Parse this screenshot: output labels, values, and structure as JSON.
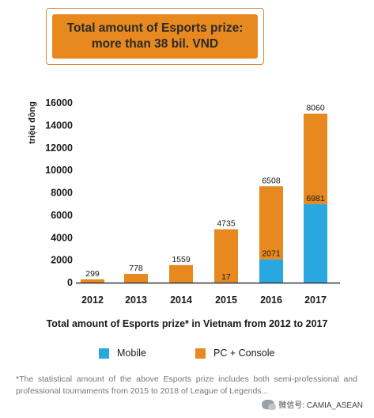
{
  "title_box": {
    "line1": "Total amount of Esports prize:",
    "line2": "more than 38 bil. VND"
  },
  "colors": {
    "title_bg": "#e8891f",
    "mobile": "#29a8e0",
    "pc_console": "#e8891f"
  },
  "chart_data": {
    "type": "bar",
    "stacked": true,
    "categories": [
      "2012",
      "2013",
      "2014",
      "2015",
      "2016",
      "2017"
    ],
    "series": [
      {
        "name": "Mobile",
        "values": [
          0,
          0,
          0,
          17,
          2071,
          6981
        ],
        "labels": [
          "",
          "",
          "",
          "17",
          "2071",
          "6981"
        ]
      },
      {
        "name": "PC + Console",
        "values": [
          299,
          778,
          1559,
          4735,
          6508,
          8060
        ],
        "labels": [
          "299",
          "778",
          "1559",
          "4735",
          "6508",
          "8060"
        ]
      }
    ],
    "ylabel": "triệu đồng",
    "yticks": [
      "0",
      "2000",
      "4000",
      "6000",
      "8000",
      "10000",
      "12000",
      "14000",
      "16000"
    ],
    "ylim": [
      0,
      16000
    ],
    "grid": false,
    "title": "Total amount of Esports prize* in Vietnam from 2012 to 2017",
    "legend_position": "bottom"
  },
  "legend": {
    "mobile_label": "Mobile",
    "pc_label": "PC + Console"
  },
  "note": "*The statistical amount of the above Esports prize includes both semi-professional and professional tournaments from 2015 to 2018 of League of Legends...",
  "watermark": "微信号: CAMIA_ASEAN"
}
